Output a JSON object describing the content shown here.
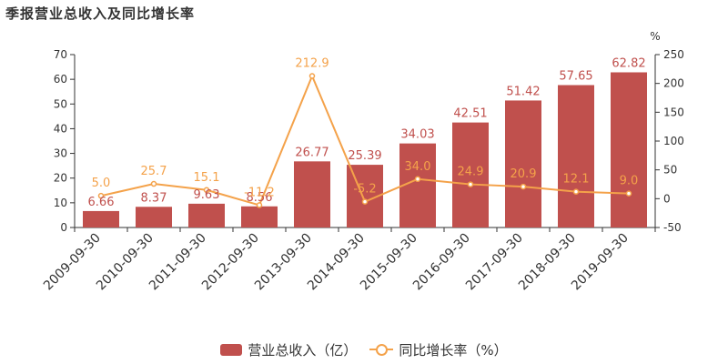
{
  "title": "季报营业总收入及同比增长率",
  "colors": {
    "bar": "#c0504d",
    "line": "#f4a24a",
    "axis": "#333333",
    "grid": "#cccccc"
  },
  "legend": {
    "bar_label": "营业总收入（亿）",
    "line_label": "同比增长率（%）"
  },
  "chart_data": {
    "type": "bar",
    "title": "季报营业总收入及同比增长率",
    "categories": [
      "2009-09-30",
      "2010-09-30",
      "2011-09-30",
      "2012-09-30",
      "2013-09-30",
      "2014-09-30",
      "2015-09-30",
      "2016-09-30",
      "2017-09-30",
      "2018-09-30",
      "2019-09-30"
    ],
    "series": [
      {
        "name": "营业总收入（亿）",
        "type": "bar",
        "axis": "left",
        "values": [
          6.66,
          8.37,
          9.63,
          8.56,
          26.77,
          25.39,
          34.03,
          42.51,
          51.42,
          57.65,
          62.82
        ],
        "labels": [
          "6.66",
          "8.37",
          "9.63",
          "8.56",
          "26.77",
          "25.39",
          "34.03",
          "42.51",
          "51.42",
          "57.65",
          "62.82"
        ]
      },
      {
        "name": "同比增长率（%）",
        "type": "line",
        "axis": "right",
        "values": [
          5.0,
          25.7,
          15.1,
          -11.2,
          212.9,
          -5.2,
          34.0,
          24.9,
          20.9,
          12.1,
          9.0
        ],
        "labels": [
          "5.0",
          "25.7",
          "15.1",
          "-11.2",
          "212.9",
          "-5.2",
          "34.0",
          "24.9",
          "20.9",
          "12.1",
          "9.0"
        ]
      }
    ],
    "y_left": {
      "min": 0,
      "max": 70,
      "ticks": [
        0,
        10,
        20,
        30,
        40,
        50,
        60,
        70
      ]
    },
    "y_right": {
      "min": -50,
      "max": 250,
      "ticks": [
        -50,
        0,
        50,
        100,
        150,
        200,
        250
      ],
      "unit": "%"
    },
    "grid": false,
    "legend_position": "bottom"
  }
}
